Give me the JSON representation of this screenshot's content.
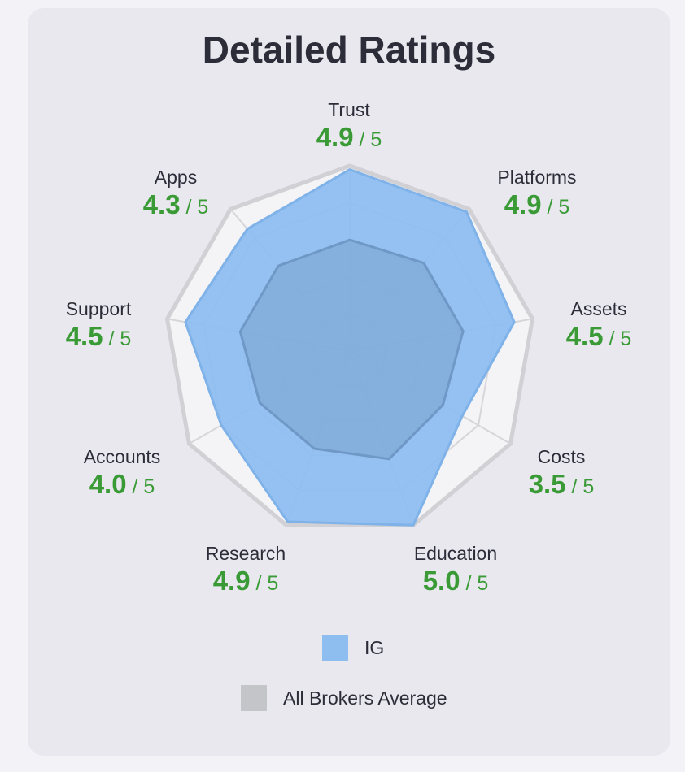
{
  "chart_data": {
    "type": "radar",
    "title": "Detailed Ratings",
    "max_score": 5,
    "max_label": "/ 5",
    "categories": [
      "Trust",
      "Platforms",
      "Assets",
      "Costs",
      "Education",
      "Research",
      "Accounts",
      "Support",
      "Apps"
    ],
    "series": [
      {
        "name": "IG",
        "values": [
          4.9,
          4.9,
          4.5,
          3.5,
          5.0,
          4.9,
          4.0,
          4.5,
          4.3
        ],
        "display_values": [
          "4.9",
          "4.9",
          "4.5",
          "3.5",
          "5.0",
          "4.9",
          "4.0",
          "4.5",
          "4.3"
        ],
        "color": "#8ebef0"
      },
      {
        "name": "All Brokers Average",
        "values": [
          3.0,
          3.1,
          3.1,
          2.9,
          3.1,
          2.8,
          2.8,
          3.0,
          3.0
        ],
        "color": "#c4c5c9"
      }
    ],
    "legend_position": "bottom"
  },
  "colors": {
    "score_green": "#3a9b36",
    "ig_fill": "#8ebef0",
    "avg_fill": "#c4c5c9",
    "grid": "#d6d6da"
  }
}
